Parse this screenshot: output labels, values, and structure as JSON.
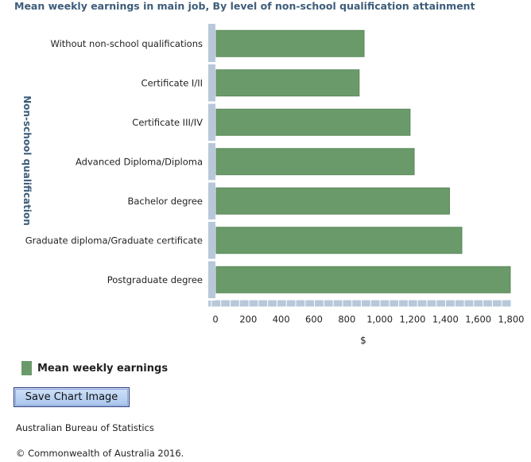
{
  "chart_data": {
    "type": "bar",
    "orientation": "horizontal",
    "title": "Mean weekly earnings in main job, By level of non-school qualification attainment",
    "xlabel": "$",
    "ylabel": "Non-school qualification",
    "categories": [
      "Without non-school qualifications",
      "Certificate I/II",
      "Certificate III/IV",
      "Advanced Diploma/Diploma",
      "Bachelor degree",
      "Graduate diploma/Graduate certificate",
      "Postgraduate degree"
    ],
    "series": [
      {
        "name": "Mean weekly earnings",
        "values": [
          905,
          875,
          1185,
          1210,
          1425,
          1500,
          1795
        ]
      }
    ],
    "xlim": [
      0,
      1800
    ],
    "ticks": [
      "0",
      "200",
      "400",
      "600",
      "800",
      "1,000",
      "1,200",
      "1,400",
      "1,600",
      "1,800"
    ],
    "grid": false,
    "legend_position": "bottom-left",
    "bar_color": "#6a9a6a"
  },
  "legend": {
    "label": "Mean weekly earnings"
  },
  "buttons": {
    "save_chart": "Save Chart Image"
  },
  "footer": {
    "source": "Australian Bureau of Statistics",
    "copyright": "© Commonwealth of Australia 2016."
  }
}
